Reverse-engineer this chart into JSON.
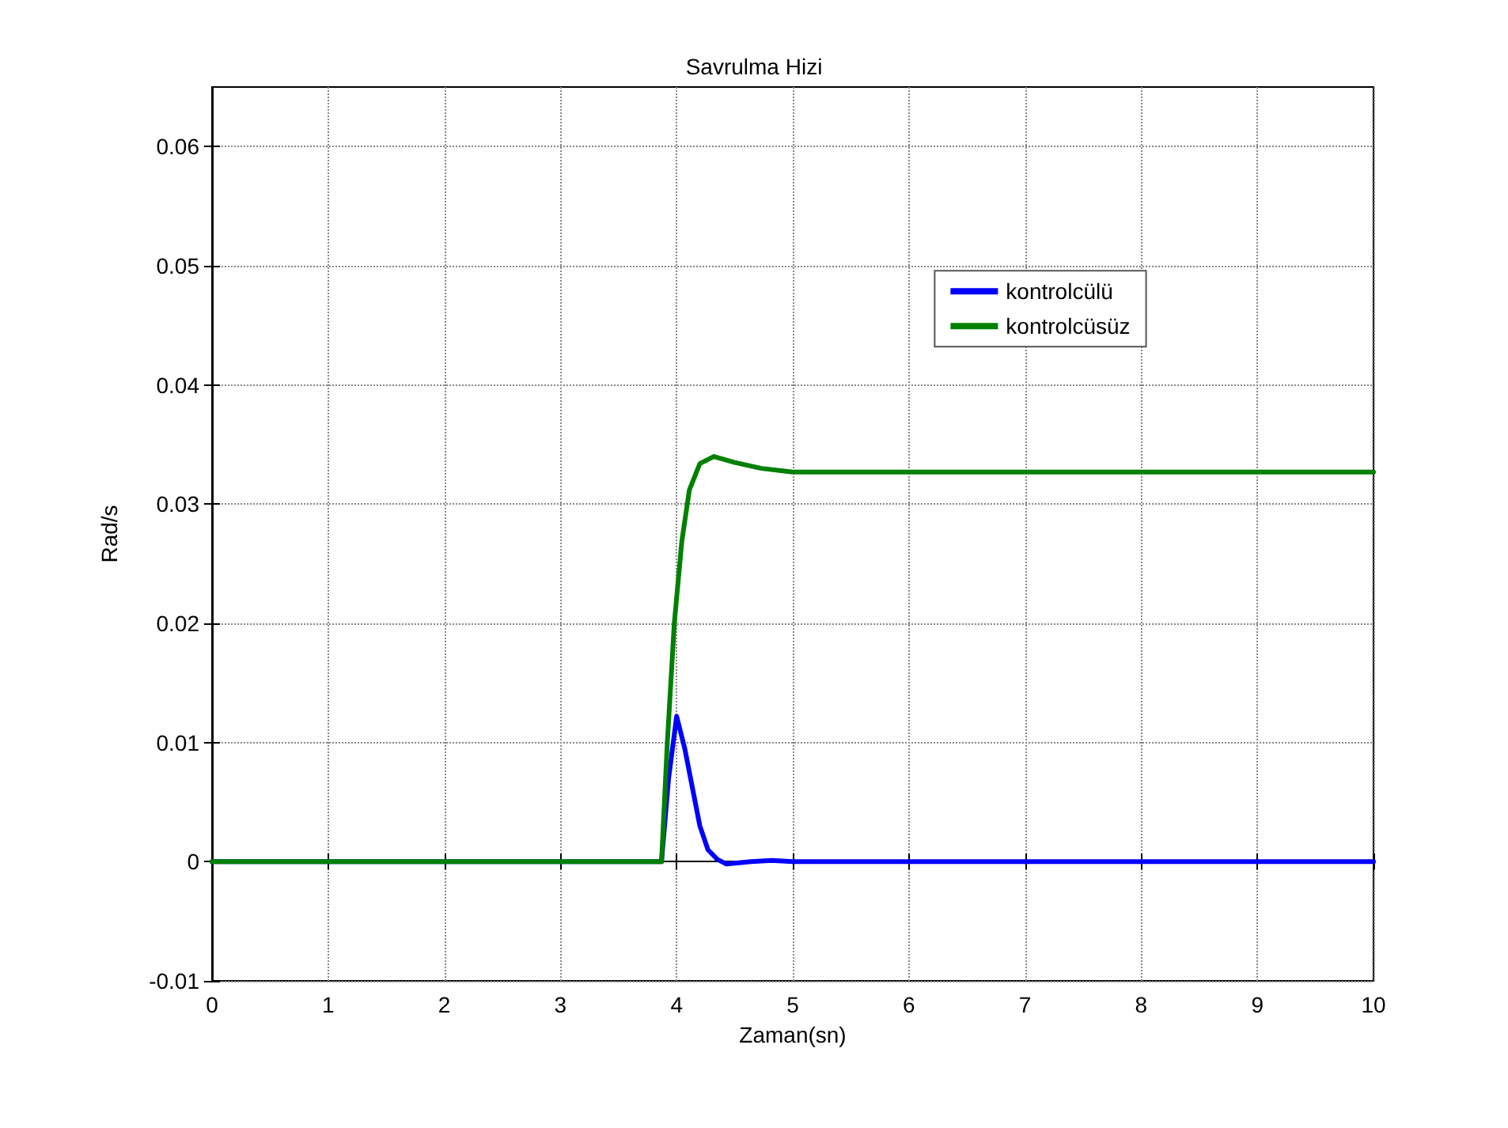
{
  "chart_data": {
    "type": "line",
    "title": "Savrulma Hizi",
    "xlabel": "Zaman(sn)",
    "ylabel": "Rad/s",
    "xlim": [
      0,
      10
    ],
    "xticks": [
      0,
      1,
      2,
      3,
      4,
      5,
      6,
      7,
      8,
      9,
      10
    ],
    "ylim": [
      -0.01,
      0.065
    ],
    "yticks": [
      -0.01,
      0,
      0.01,
      0.02,
      0.03,
      0.04,
      0.05,
      0.06
    ],
    "grid": true,
    "legend": "top right",
    "marker": "none",
    "line_style": "solid",
    "series": [
      {
        "name": "kontrolcülü",
        "color": "#0000ff",
        "x": [
          0,
          3.87,
          3.93,
          4.0,
          4.07,
          4.14,
          4.2,
          4.27,
          4.35,
          4.43,
          4.64,
          4.82,
          5.0,
          10
        ],
        "values": [
          0,
          0,
          0.0069,
          0.0122,
          0.0095,
          0.006,
          0.003,
          0.001,
          0.0002,
          -0.0002,
          0,
          0.0001,
          0,
          0
        ]
      },
      {
        "name": "kontrolcüsüz",
        "color": "#008000",
        "x": [
          0,
          3.87,
          3.92,
          3.98,
          4.045,
          4.11,
          4.2,
          4.32,
          4.5,
          4.73,
          5.0,
          10
        ],
        "values": [
          0,
          0,
          0.01,
          0.02,
          0.0269,
          0.0312,
          0.0334,
          0.034,
          0.0335,
          0.033,
          0.0327,
          0.0327
        ]
      }
    ]
  }
}
